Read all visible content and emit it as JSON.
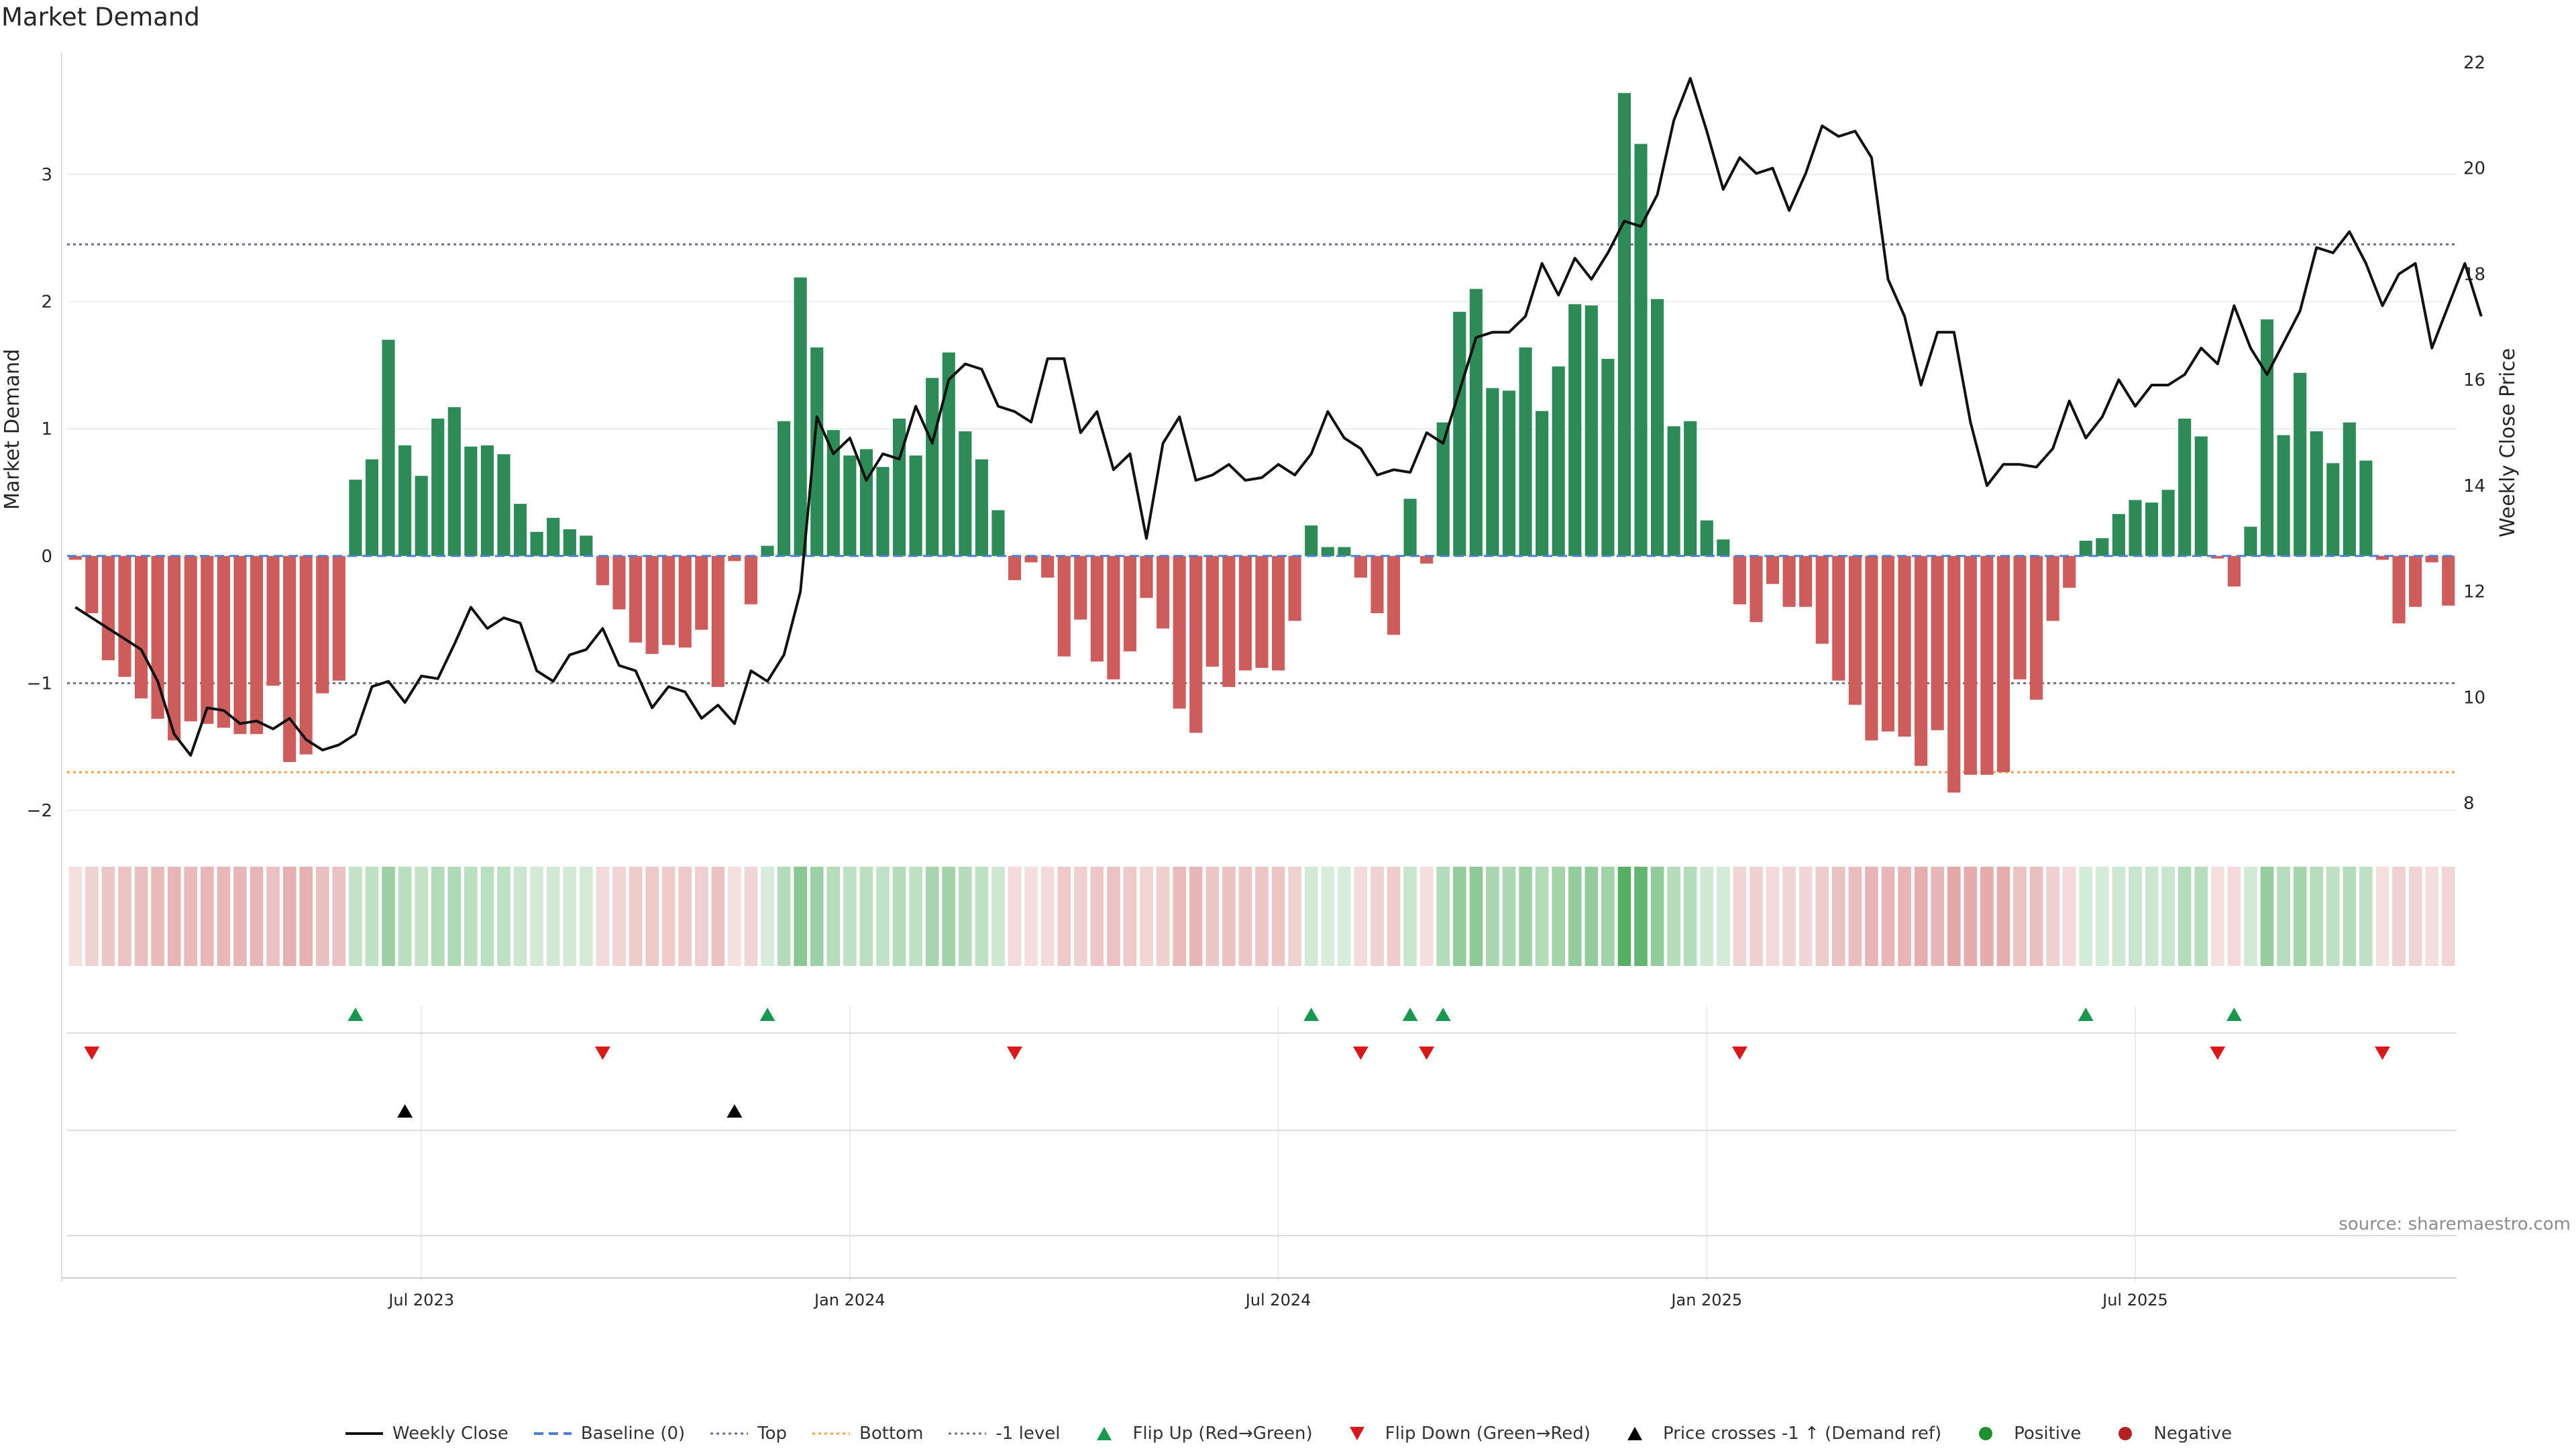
{
  "colors": {
    "positive": "#2e8b57",
    "negative": "#cd5c5c",
    "price": "#111111",
    "top": "#6a6a9a",
    "bottom": "#f0a040",
    "neg1": "#707070",
    "baseline": "#4f7fcf",
    "flip_up": "#1a9850",
    "flip_down": "#d7191c",
    "cross": "#000000",
    "dot_pos": "#1f8f2f",
    "dot_neg": "#b22222"
  },
  "chart_data": {
    "type": "bar+line",
    "title": "Market Demand",
    "source": "source: sharemaestro.com",
    "ylabel_left": "Market Demand",
    "ylabel_right": "Weekly Close Price",
    "ylim_left": [
      -2,
      3.8
    ],
    "ylim_right": [
      8,
      22.5
    ],
    "yticks_left": [
      "−2",
      "−1",
      "0",
      "1",
      "2",
      "3"
    ],
    "yticks_left_values": [
      -2,
      -1,
      0,
      1,
      2,
      3
    ],
    "yticks_right": [
      "8",
      "10",
      "12",
      "14",
      "16",
      "18",
      "20",
      "22"
    ],
    "yticks_right_values": [
      8,
      10,
      12,
      14,
      16,
      18,
      20,
      22
    ],
    "xticks": [
      {
        "label": "Jul 2023",
        "week": 21
      },
      {
        "label": "Jan 2024",
        "week": 47
      },
      {
        "label": "Jul 2024",
        "week": 73
      },
      {
        "label": "Jan 2025",
        "week": 99
      },
      {
        "label": "Jul 2025",
        "week": 125
      }
    ],
    "reference_levels": {
      "top": 2.45,
      "bottom": -1.7,
      "minus_one": -1.0,
      "baseline": 0
    },
    "demand": [
      -0.03,
      -0.45,
      -0.82,
      -0.95,
      -1.12,
      -1.28,
      -1.45,
      -1.3,
      -1.32,
      -1.35,
      -1.4,
      -1.4,
      -1.02,
      -1.62,
      -1.56,
      -1.08,
      -0.98,
      0.6,
      0.76,
      1.7,
      0.87,
      0.63,
      1.08,
      1.17,
      0.86,
      0.87,
      0.8,
      0.41,
      0.19,
      0.3,
      0.21,
      0.16,
      -0.23,
      -0.42,
      -0.68,
      -0.77,
      -0.7,
      -0.72,
      -0.58,
      -1.03,
      -0.04,
      -0.38,
      0.08,
      1.06,
      2.19,
      1.64,
      0.99,
      0.79,
      0.84,
      0.7,
      1.08,
      0.79,
      1.4,
      1.6,
      0.98,
      0.76,
      0.36,
      -0.19,
      -0.05,
      -0.17,
      -0.79,
      -0.5,
      -0.83,
      -0.97,
      -0.75,
      -0.33,
      -0.57,
      -1.2,
      -1.39,
      -0.87,
      -1.03,
      -0.9,
      -0.88,
      -0.9,
      -0.51,
      0.24,
      0.07,
      0.07,
      -0.17,
      -0.45,
      -0.62,
      0.45,
      -0.06,
      1.05,
      1.92,
      2.1,
      1.32,
      1.3,
      1.64,
      1.14,
      1.49,
      1.98,
      1.97,
      1.55,
      3.64,
      3.24,
      2.02,
      1.02,
      1.06,
      0.28,
      0.13,
      -0.38,
      -0.52,
      -0.22,
      -0.4,
      -0.4,
      -0.69,
      -0.98,
      -1.17,
      -1.45,
      -1.38,
      -1.42,
      -1.65,
      -1.37,
      -1.86,
      -1.72,
      -1.72,
      -1.7,
      -0.97,
      -1.13,
      -0.51,
      -0.25,
      0.12,
      0.14,
      0.33,
      0.44,
      0.42,
      0.52,
      1.08,
      0.94,
      -0.02,
      -0.24,
      0.23,
      1.86,
      0.95,
      1.44,
      0.98,
      0.73,
      1.05,
      0.75,
      -0.03,
      -0.53,
      -0.4,
      -0.05,
      -0.39
    ],
    "close": [
      11.7,
      11.5,
      11.3,
      11.1,
      10.9,
      10.3,
      9.3,
      8.9,
      9.8,
      9.75,
      9.5,
      9.55,
      9.4,
      9.6,
      9.2,
      9.0,
      9.1,
      9.3,
      10.2,
      10.3,
      9.9,
      10.4,
      10.35,
      11.0,
      11.7,
      11.3,
      11.5,
      11.4,
      10.5,
      10.3,
      10.8,
      10.9,
      11.3,
      10.6,
      10.5,
      9.8,
      10.2,
      10.1,
      9.6,
      9.85,
      9.5,
      10.5,
      10.3,
      10.8,
      12.0,
      15.3,
      14.6,
      14.9,
      14.1,
      14.6,
      14.5,
      15.5,
      14.8,
      16.0,
      16.3,
      16.2,
      15.5,
      15.4,
      15.2,
      16.4,
      16.4,
      15.0,
      15.4,
      14.3,
      14.6,
      13.0,
      14.8,
      15.3,
      14.1,
      14.2,
      14.4,
      14.1,
      14.15,
      14.4,
      14.2,
      14.6,
      15.4,
      14.9,
      14.7,
      14.2,
      14.3,
      14.25,
      15.0,
      14.8,
      15.8,
      16.8,
      16.9,
      16.9,
      17.2,
      18.2,
      17.6,
      18.3,
      17.9,
      18.4,
      19.0,
      18.9,
      19.5,
      20.9,
      21.7,
      20.7,
      19.6,
      20.2,
      19.9,
      20.0,
      19.2,
      19.9,
      20.8,
      20.6,
      20.7,
      20.2,
      17.9,
      17.2,
      15.9,
      16.9,
      16.9,
      15.2,
      14.0,
      14.4,
      14.4,
      14.35,
      14.7,
      15.6,
      14.9,
      15.3,
      16.0,
      15.5,
      15.9,
      15.9,
      16.1,
      16.6,
      16.3,
      17.4,
      16.6,
      16.1,
      16.7,
      17.3,
      18.5,
      18.4,
      18.8,
      18.2,
      17.4,
      18.0,
      18.2,
      16.6,
      17.4,
      18.2,
      17.2
    ],
    "flip_up_weeks": [
      17,
      42,
      75,
      81,
      83,
      122,
      131
    ],
    "flip_down_weeks": [
      1,
      32,
      57,
      78,
      82,
      101,
      130,
      140
    ],
    "cross_weeks": [
      20,
      40
    ]
  },
  "legend": [
    {
      "kind": "line",
      "label": "Weekly Close"
    },
    {
      "kind": "baseline",
      "label": "Baseline (0)"
    },
    {
      "kind": "top",
      "label": "Top"
    },
    {
      "kind": "bottom",
      "label": "Bottom"
    },
    {
      "kind": "neg1",
      "label": "-1 level"
    },
    {
      "kind": "flip_up",
      "label": "Flip Up (Red→Green)"
    },
    {
      "kind": "flip_down",
      "label": "Flip Down (Green→Red)"
    },
    {
      "kind": "cross",
      "label": "Price crosses -1 ↑ (Demand ref)"
    },
    {
      "kind": "dot_pos",
      "label": "Positive"
    },
    {
      "kind": "dot_neg",
      "label": "Negative"
    }
  ]
}
